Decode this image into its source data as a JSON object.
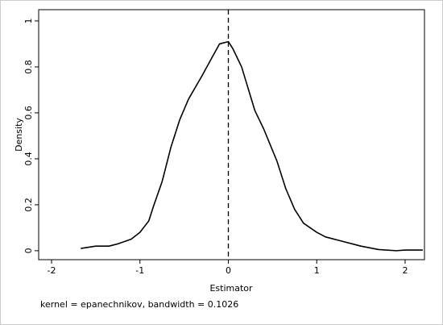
{
  "chart_data": {
    "type": "line",
    "x_label": "Estimator",
    "y_label": "Density",
    "note": "kernel = epanechnikov, bandwidth = 0.1026",
    "x": [
      -1.67,
      -1.5,
      -1.35,
      -1.25,
      -1.1,
      -1.0,
      -0.9,
      -0.85,
      -0.75,
      -0.65,
      -0.55,
      -0.45,
      -0.3,
      -0.2,
      -0.1,
      0.0,
      0.05,
      0.15,
      0.3,
      0.4,
      0.55,
      0.65,
      0.75,
      0.85,
      1.0,
      1.1,
      1.3,
      1.5,
      1.7,
      1.9,
      2.0,
      2.2
    ],
    "series": [
      {
        "color": "#000000",
        "values": [
          0.01,
          0.02,
          0.02,
          0.03,
          0.05,
          0.08,
          0.13,
          0.19,
          0.3,
          0.45,
          0.57,
          0.66,
          0.76,
          0.83,
          0.9,
          0.91,
          0.88,
          0.8,
          0.61,
          0.53,
          0.39,
          0.27,
          0.18,
          0.12,
          0.08,
          0.06,
          0.04,
          0.02,
          0.005,
          0.0,
          0.003,
          0.003
        ]
      }
    ],
    "xline": 0,
    "xlim": [
      -2.146,
      2.219
    ],
    "ylim": [
      -0.039,
      1.049
    ],
    "xticks": [
      -2,
      -1,
      0,
      1,
      2
    ],
    "yticks": [
      0,
      0.2,
      0.4,
      0.6,
      0.8,
      1
    ],
    "grid": false
  }
}
